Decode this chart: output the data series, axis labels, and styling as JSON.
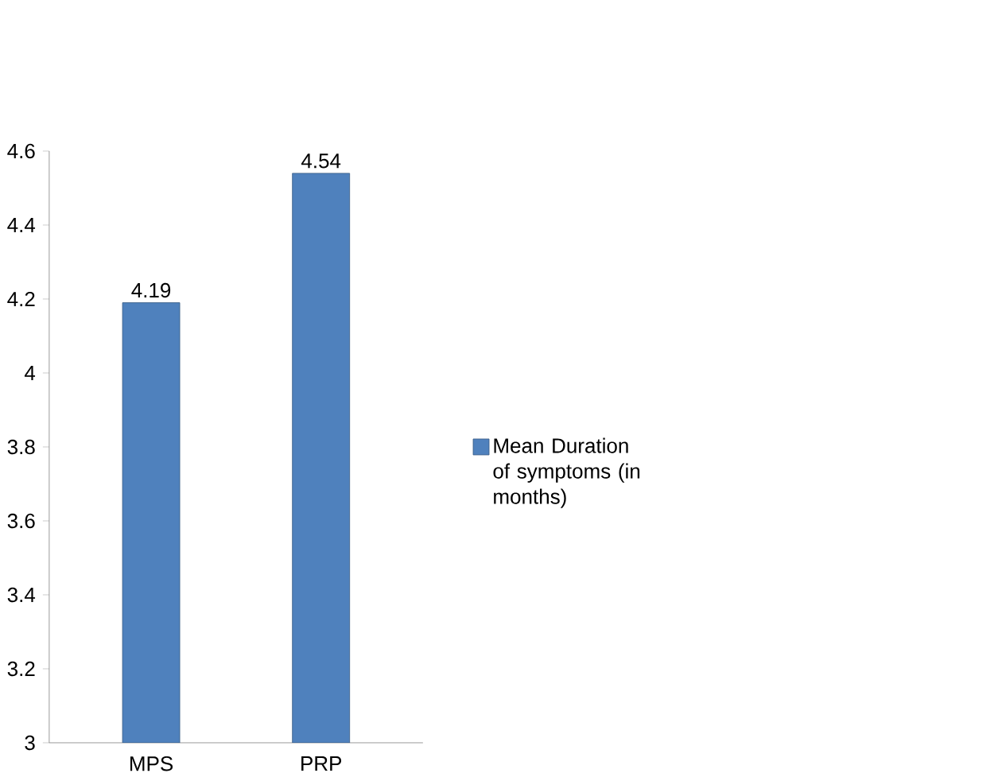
{
  "chart_data": {
    "type": "bar",
    "categories": [
      "MPS",
      "PRP"
    ],
    "series": [
      {
        "name": "Mean Duration of symptoms (in months)",
        "color": "#4f81bd",
        "values": [
          4.19,
          4.54
        ]
      }
    ],
    "ylim": [
      3,
      4.6
    ],
    "yticks": [
      3,
      3.2,
      3.4,
      3.6,
      3.8,
      4,
      4.2,
      4.4,
      4.6
    ],
    "data_labels": true,
    "legend": "right",
    "grid": false
  }
}
